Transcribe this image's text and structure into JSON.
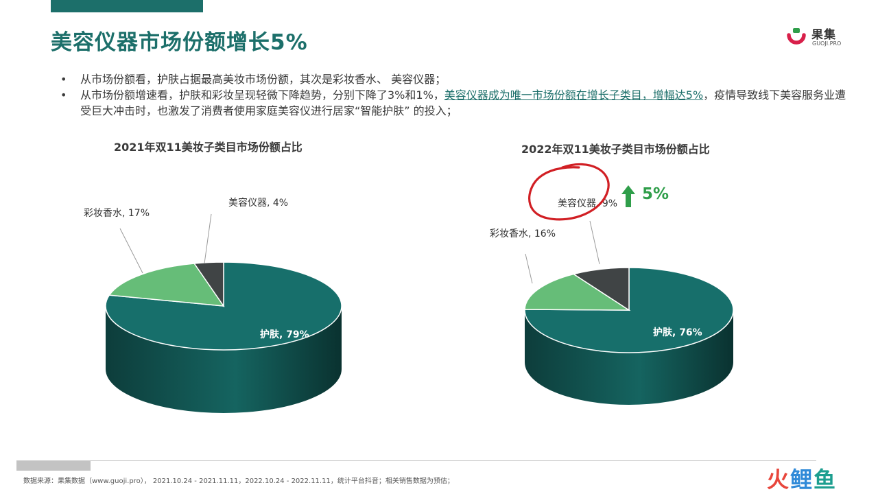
{
  "header": {
    "title": "美容仪器市场份额增长5%",
    "logo_name": "果集",
    "logo_sub": "GUOJI.PRO"
  },
  "bullets": {
    "b1": "从市场份额看，护肤占据最高美妆市场份额，其次是彩妆香水、 美容仪器；",
    "b2_pre": "从市场份额增速看，护肤和彩妆呈现轻微下降趋势，分别下降了3%和1%，",
    "b2_highlight": "美容仪器成为唯一市场份额在增长子类目，增幅达5%",
    "b2_post": "，疫情导致线下美容服务业遭受巨大冲击时，也激发了消费者使用家庭美容仪进行居家“智能护肤” 的投入；"
  },
  "chart_data": [
    {
      "type": "pie",
      "title": "2021年双11美妆子类目市场份额占比",
      "slices": [
        {
          "name": "护肤",
          "value": 79,
          "label": "护肤, 79%"
        },
        {
          "name": "彩妆香水",
          "value": 17,
          "label": "彩妆香水, 17%"
        },
        {
          "name": "美容仪器",
          "value": 4,
          "label": "美容仪器, 4%"
        }
      ]
    },
    {
      "type": "pie",
      "title": "2022年双11美妆子类目市场份额占比",
      "slices": [
        {
          "name": "护肤",
          "value": 76,
          "label": "护肤, 76%"
        },
        {
          "name": "彩妆香水",
          "value": 16,
          "label": "彩妆香水, 16%"
        },
        {
          "name": "美容仪器",
          "value": 9,
          "label": "美容仪器, 9%"
        }
      ],
      "annotation": "5%"
    }
  ],
  "colors": {
    "skincare": "#176f6b",
    "makeup": "#66bd78",
    "device": "#404445",
    "accent": "#1c6f6a",
    "growth": "#2f9e4a",
    "circle": "#d11f24"
  },
  "footer": {
    "source": "数据来源：果集数据（www.guoji.pro）， 2021.10.24 - 2021.11.11，2022.10.24 - 2022.11.11，统计平台抖音；相关销售数据为预估；",
    "brand_1": "火",
    "brand_2": "鲤",
    "brand_3": "鱼"
  }
}
